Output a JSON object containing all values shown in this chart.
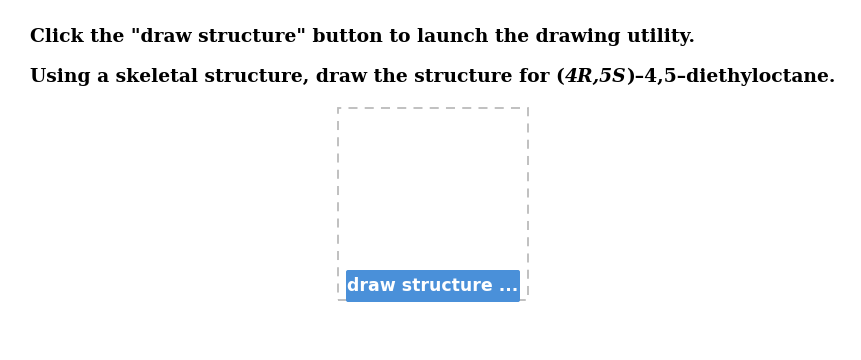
{
  "line1": "Click the \"draw structure\" button to launch the drawing utility.",
  "line2_pre": "Using a skeletal structure, draw the structure for (",
  "line2_stereo": "4R,5S",
  "line2_post": ")–4,5–diethyloctane.",
  "button_text": "draw structure ...",
  "button_color": "#4a90d9",
  "button_text_color": "#ffffff",
  "bg_color": "#ffffff",
  "text_color": "#000000",
  "box_color": "#bbbbbb",
  "font_size": 13.5,
  "btn_font_size": 12.5
}
